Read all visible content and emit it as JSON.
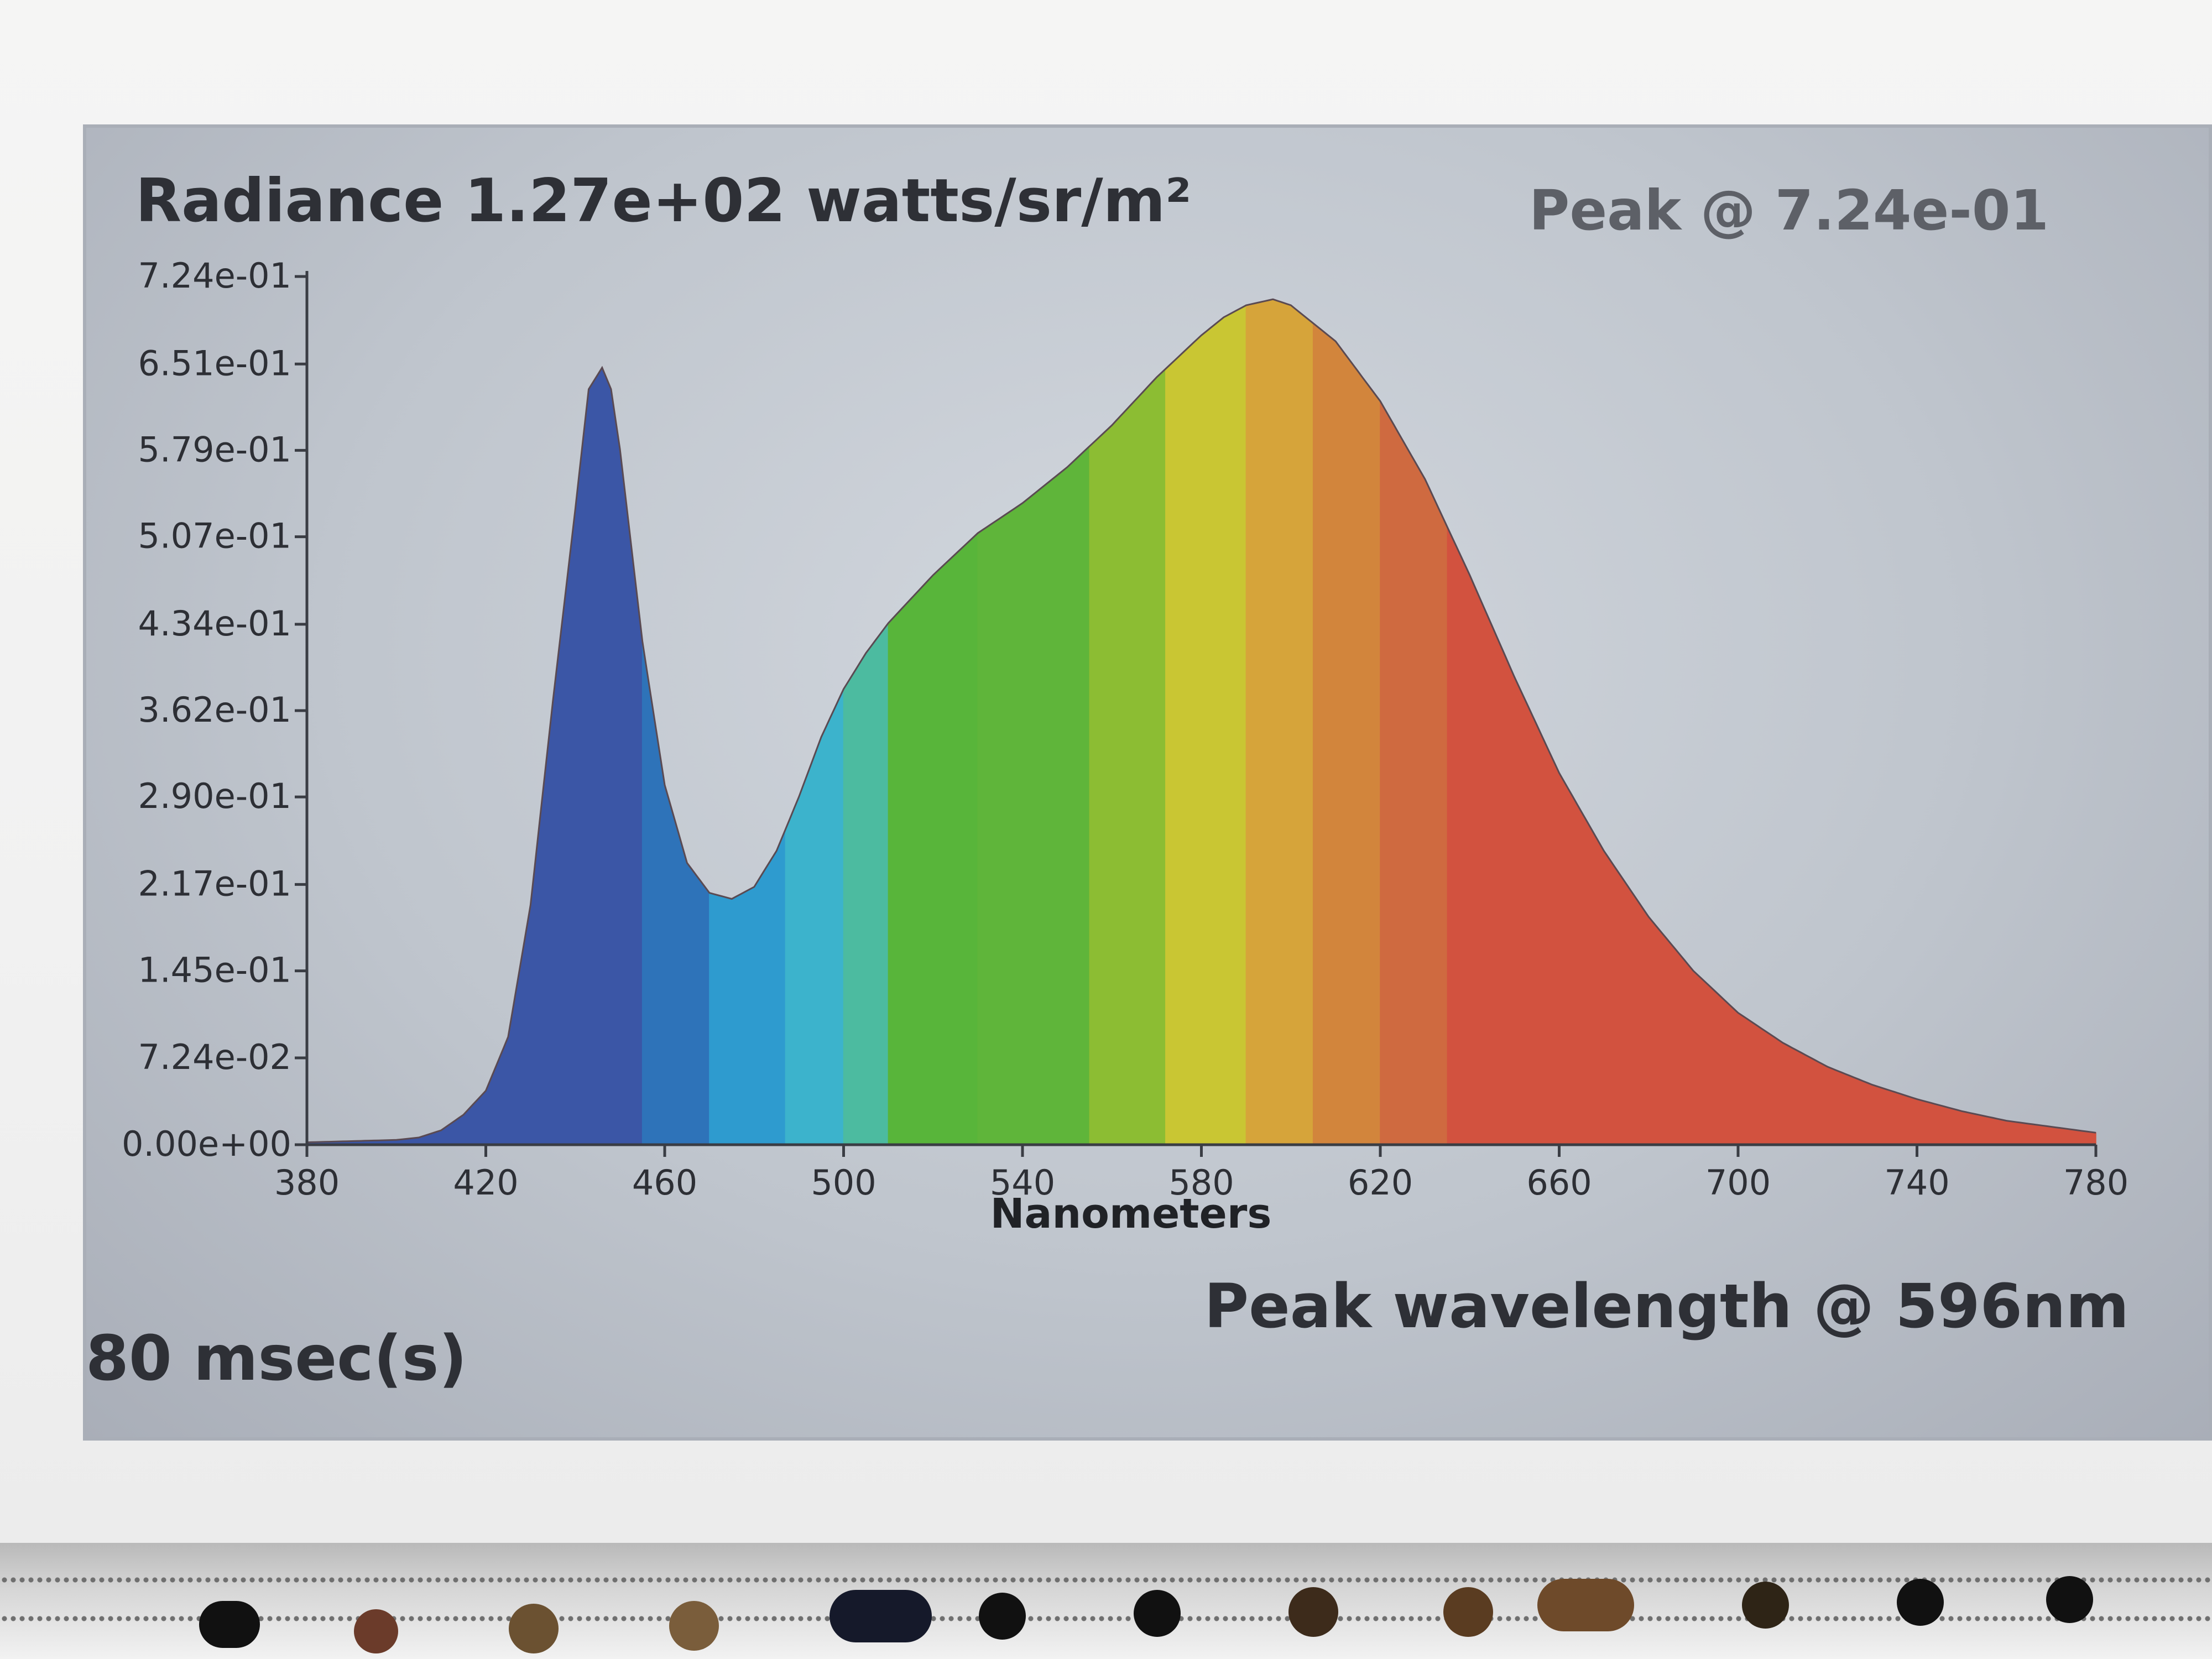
{
  "header": {
    "radiance": "Radiance 1.27e+02 watts/sr/m²",
    "peak_value": "Peak @ 7.24e-01"
  },
  "footer": {
    "integration_time": "80 msec(s)",
    "peak_wavelength": "Peak wavelength @ 596nm"
  },
  "chart_data": {
    "type": "area",
    "xlabel": "Nanometers",
    "ylabel": "",
    "xlim": [
      380,
      780
    ],
    "ylim": [
      0,
      0.724
    ],
    "x_ticks": [
      380,
      420,
      460,
      500,
      540,
      580,
      620,
      660,
      700,
      740,
      780
    ],
    "x_tick_labels": [
      "380",
      "420",
      "460",
      "500",
      "540",
      "580",
      "620",
      "660",
      "700",
      "740",
      "780"
    ],
    "y_ticks": [
      0,
      0.0724,
      0.145,
      0.217,
      0.29,
      0.362,
      0.434,
      0.507,
      0.579,
      0.651,
      0.724
    ],
    "y_tick_labels": [
      "0.00e+00",
      "7.24e-02",
      "1.45e-01",
      "2.17e-01",
      "2.90e-01",
      "3.62e-01",
      "4.34e-01",
      "5.07e-01",
      "5.79e-01",
      "6.51e-01",
      "7.24e-01"
    ],
    "series": [
      {
        "x": [
          380,
          390,
          400,
          405,
          410,
          415,
          420,
          425,
          430,
          435,
          440,
          443,
          446,
          448,
          450,
          455,
          460,
          465,
          470,
          475,
          480,
          485,
          490,
          495,
          500,
          505,
          510,
          520,
          530,
          540,
          550,
          560,
          570,
          580,
          585,
          590,
          596,
          600,
          605,
          610,
          620,
          630,
          640,
          650,
          660,
          670,
          680,
          690,
          700,
          710,
          720,
          730,
          740,
          750,
          760,
          770,
          780
        ],
        "y": [
          0.002,
          0.003,
          0.004,
          0.006,
          0.012,
          0.025,
          0.045,
          0.09,
          0.2,
          0.37,
          0.53,
          0.63,
          0.648,
          0.63,
          0.58,
          0.42,
          0.3,
          0.235,
          0.21,
          0.205,
          0.215,
          0.245,
          0.29,
          0.34,
          0.38,
          0.41,
          0.435,
          0.475,
          0.51,
          0.535,
          0.565,
          0.6,
          0.64,
          0.675,
          0.69,
          0.7,
          0.705,
          0.7,
          0.685,
          0.67,
          0.62,
          0.555,
          0.475,
          0.39,
          0.31,
          0.245,
          0.19,
          0.145,
          0.11,
          0.085,
          0.065,
          0.05,
          0.038,
          0.028,
          0.02,
          0.015,
          0.01
        ]
      }
    ],
    "bands": [
      {
        "from": 380,
        "to": 455,
        "color": "#3b56a6"
      },
      {
        "from": 455,
        "to": 470,
        "color": "#2e73b9"
      },
      {
        "from": 470,
        "to": 487,
        "color": "#2e9bcf"
      },
      {
        "from": 487,
        "to": 500,
        "color": "#3cb3cc"
      },
      {
        "from": 500,
        "to": 510,
        "color": "#4cbba0"
      },
      {
        "from": 510,
        "to": 530,
        "color": "#58b53a"
      },
      {
        "from": 530,
        "to": 555,
        "color": "#5fb53a"
      },
      {
        "from": 555,
        "to": 572,
        "color": "#8cbd33"
      },
      {
        "from": 572,
        "to": 590,
        "color": "#c9c633"
      },
      {
        "from": 590,
        "to": 605,
        "color": "#d6a43a"
      },
      {
        "from": 605,
        "to": 620,
        "color": "#d2853c"
      },
      {
        "from": 620,
        "to": 635,
        "color": "#cf6a40"
      },
      {
        "from": 635,
        "to": 780,
        "color": "#d2523f"
      }
    ],
    "grid": false,
    "legend": "none"
  }
}
